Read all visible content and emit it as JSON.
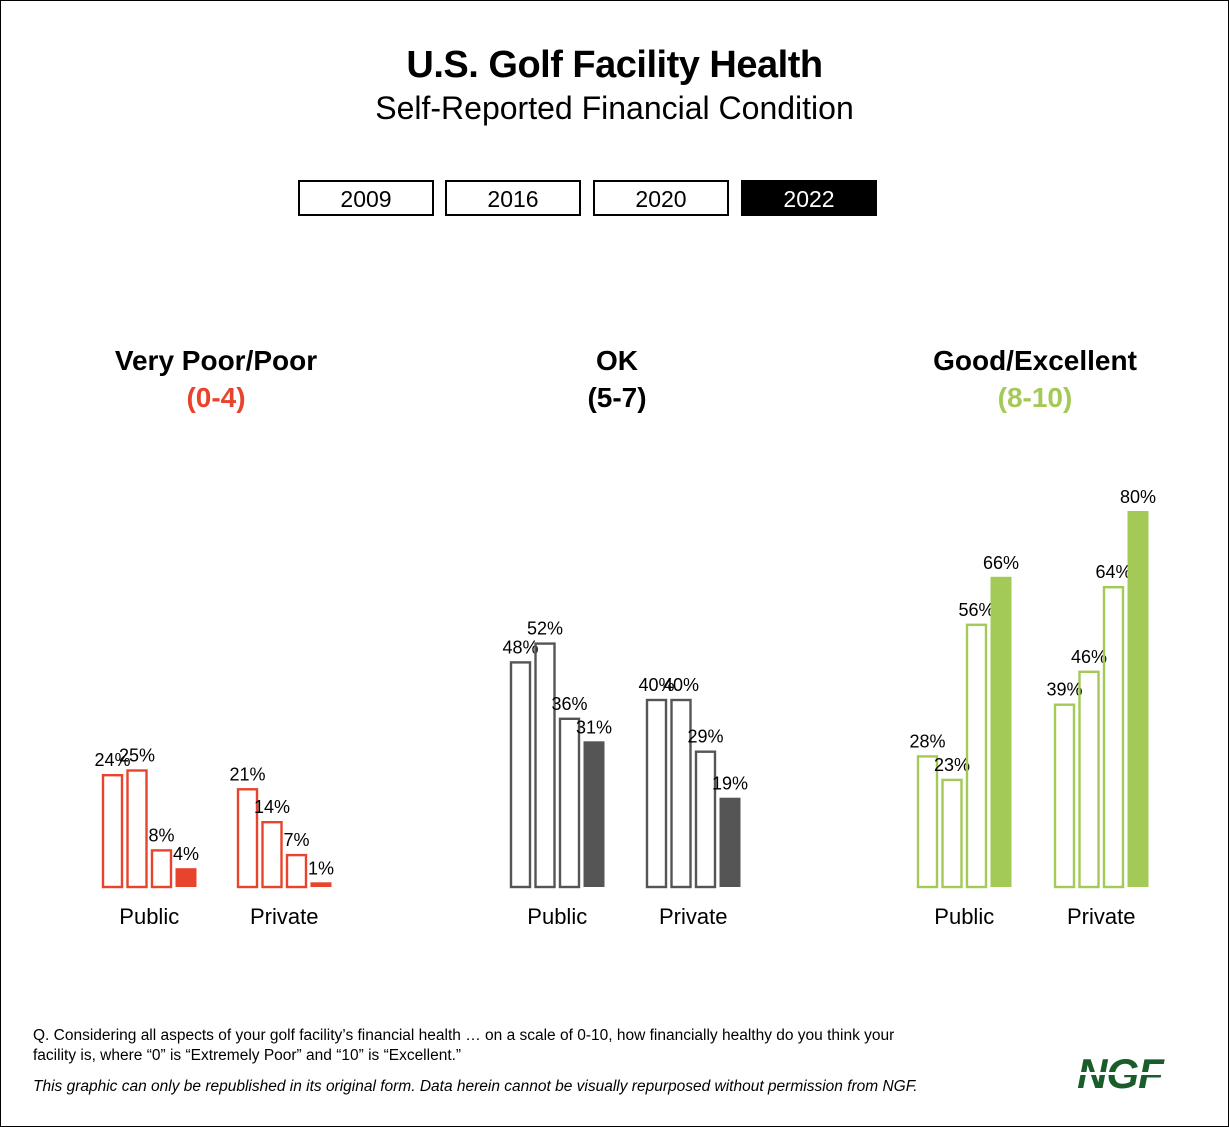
{
  "title": "U.S. Golf Facility Health",
  "subtitle": "Self-Reported Financial Condition",
  "legend": [
    "2009",
    "2016",
    "2020",
    "2022"
  ],
  "colors": {
    "poor": "#e8432c",
    "ok": "#555555",
    "good": "#a3c957",
    "logo": "#1a5c2a"
  },
  "groups": [
    {
      "title": "Very Poor/Poor",
      "range": "(0-4)"
    },
    {
      "title": "OK",
      "range": "(5-7)"
    },
    {
      "title": "Good/Excellent",
      "range": "(8-10)"
    }
  ],
  "chart_data": {
    "type": "bar",
    "series": [
      "2009",
      "2016",
      "2020",
      "2022"
    ],
    "panels": [
      {
        "group": "Very Poor/Poor (0-4)",
        "categories": [
          "Public",
          "Private"
        ],
        "values": [
          [
            24,
            25,
            8,
            4
          ],
          [
            21,
            14,
            7,
            1
          ]
        ],
        "labels": [
          [
            "24%",
            "25%",
            "8%",
            "4%"
          ],
          [
            "21%",
            "14%",
            "7%",
            "1%"
          ]
        ]
      },
      {
        "group": "OK (5-7)",
        "categories": [
          "Public",
          "Private"
        ],
        "values": [
          [
            48,
            52,
            36,
            31
          ],
          [
            40,
            40,
            29,
            19
          ]
        ],
        "labels": [
          [
            "48%",
            "52%",
            "36%",
            "31%"
          ],
          [
            "40%",
            "40%",
            "29%",
            "19%"
          ]
        ]
      },
      {
        "group": "Good/Excellent (8-10)",
        "categories": [
          "Public",
          "Private"
        ],
        "values": [
          [
            28,
            23,
            56,
            66
          ],
          [
            39,
            46,
            64,
            80
          ]
        ],
        "labels": [
          [
            "28%",
            "23%",
            "56%",
            "66%"
          ],
          [
            "39%",
            "46%",
            "64%",
            "80%"
          ]
        ]
      }
    ],
    "ylim": [
      0,
      80
    ]
  },
  "footnote_line1": "Q. Considering all aspects of your golf facility’s financial health … on a scale of 0-10, how financially healthy do you think your",
  "footnote_line2": "facility is, where “0” is “Extremely Poor” and “10” is “Excellent.”",
  "disclaimer": "This graphic can only be republished in its original form. Data herein cannot be visually repurposed without permission from NGF.",
  "logo_text": "NGF"
}
